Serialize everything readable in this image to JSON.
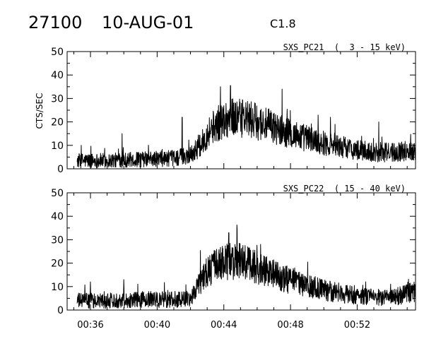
{
  "header": {
    "id": "27100",
    "date": "10-AUG-01",
    "class": "C1.8"
  },
  "chart_data": [
    {
      "type": "line",
      "title": "SXS_PC21  (  3 - 15 keV)",
      "ylabel": "CTS/SEC",
      "xlabel": "",
      "xlim_minutes": [
        34.6,
        55.5
      ],
      "ylim": [
        0,
        50
      ],
      "yticks": [
        0,
        10,
        20,
        30,
        40,
        50
      ],
      "xtick_labels": [
        "00:36",
        "00:40",
        "00:44",
        "00:48",
        "00:52"
      ],
      "grid": false,
      "data_start": "00:35.2",
      "data_end": "00:55.5",
      "envelope": {
        "x": [
          "00:35.2",
          "00:37",
          "00:39",
          "00:41",
          "00:42",
          "00:42.6",
          "00:43.2",
          "00:44",
          "00:44.5",
          "00:45",
          "00:45.5",
          "00:46",
          "00:47",
          "00:48",
          "00:49",
          "00:50",
          "00:51",
          "00:52",
          "00:53",
          "00:54",
          "00:55.5"
        ],
        "y": [
          3.5,
          3.5,
          4,
          4.5,
          6,
          10,
          17,
          21,
          22,
          21.5,
          21,
          20,
          17.5,
          15,
          13,
          11,
          9.5,
          8,
          7,
          7,
          8
        ]
      },
      "spikes": [
        {
          "x": "00:37.9",
          "y": 15
        },
        {
          "x": "00:41.5",
          "y": 22
        },
        {
          "x": "00:43.8",
          "y": 35
        },
        {
          "x": "00:44.4",
          "y": 35.5
        },
        {
          "x": "00:47.5",
          "y": 34
        },
        {
          "x": "00:50.4",
          "y": 22
        },
        {
          "x": "00:53.3",
          "y": 20
        }
      ]
    },
    {
      "type": "line",
      "title": "SXS_PC22  ( 15 - 40 keV)",
      "ylabel": "",
      "xlabel": "",
      "xlim_minutes": [
        34.6,
        55.5
      ],
      "ylim": [
        0,
        50
      ],
      "yticks": [
        0,
        10,
        20,
        30,
        40,
        50
      ],
      "xtick_labels": [
        "00:36",
        "00:40",
        "00:44",
        "00:48",
        "00:52"
      ],
      "grid": false,
      "data_start": "00:35.2",
      "data_end": "00:55.5",
      "envelope": {
        "x": [
          "00:35.2",
          "00:37",
          "00:39",
          "00:41",
          "00:42",
          "00:42.4",
          "00:43",
          "00:44",
          "00:44.5",
          "00:45",
          "00:46",
          "00:47",
          "00:48",
          "00:49",
          "00:50",
          "00:51",
          "00:52",
          "00:53",
          "00:54",
          "00:55.5"
        ],
        "y": [
          4,
          4,
          4.5,
          4.5,
          5,
          10,
          17,
          20,
          21,
          20.5,
          18,
          15,
          12.5,
          10.5,
          8.5,
          7,
          6,
          5.5,
          5,
          8
        ]
      },
      "spikes": [
        {
          "x": "00:36.0",
          "y": 12
        },
        {
          "x": "00:38.0",
          "y": 13
        },
        {
          "x": "00:44.3",
          "y": 33
        },
        {
          "x": "00:44.8",
          "y": 34.5
        },
        {
          "x": "00:46.2",
          "y": 28
        }
      ]
    }
  ]
}
